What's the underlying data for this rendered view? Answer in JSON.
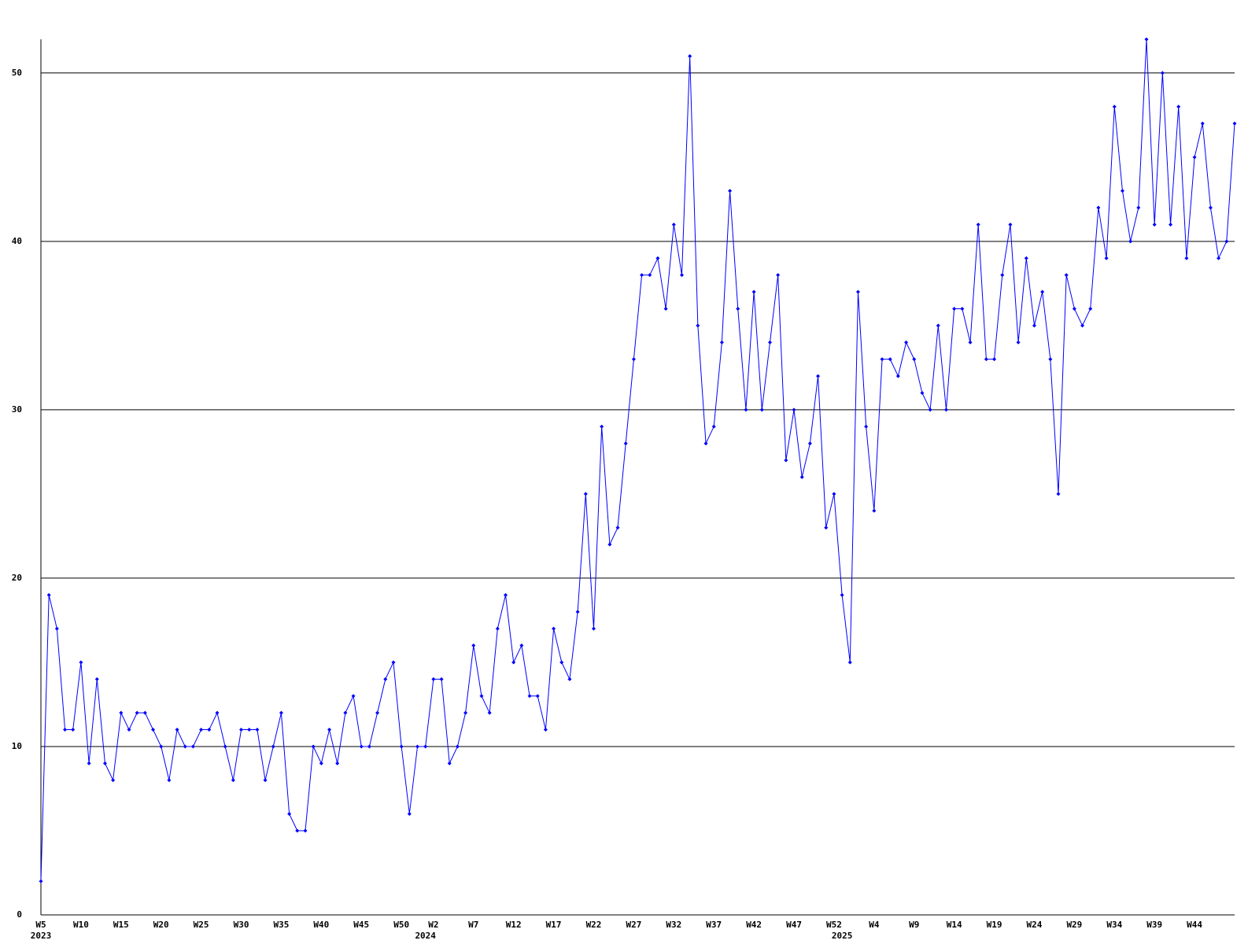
{
  "chart_data": {
    "type": "line",
    "x": [
      "W5",
      null,
      null,
      null,
      null,
      "W10",
      null,
      null,
      null,
      null,
      "W15",
      null,
      null,
      null,
      null,
      "W20",
      null,
      null,
      null,
      null,
      "W25",
      null,
      null,
      null,
      null,
      "W30",
      null,
      null,
      null,
      null,
      "W35",
      null,
      null,
      null,
      null,
      "W40",
      null,
      null,
      null,
      null,
      "W45",
      null,
      null,
      null,
      null,
      "W50",
      null,
      null,
      null,
      "W2",
      null,
      null,
      null,
      null,
      "W7",
      null,
      null,
      null,
      null,
      "W12",
      null,
      null,
      null,
      null,
      "W17",
      null,
      null,
      null,
      null,
      "W22",
      null,
      null,
      null,
      null,
      "W27",
      null,
      null,
      null,
      null,
      "W32",
      null,
      null,
      null,
      null,
      "W37",
      null,
      null,
      null,
      null,
      "W42",
      null,
      null,
      null,
      null,
      "W47",
      null,
      null,
      null,
      null,
      "W52",
      null,
      null,
      null,
      null,
      "W4",
      null,
      null,
      null,
      null,
      "W9",
      null,
      null,
      null,
      null,
      "W14",
      null,
      null,
      null,
      null,
      "W19",
      null,
      null,
      null,
      null,
      "W24",
      null,
      null,
      null,
      null,
      "W29",
      null,
      null,
      null,
      null,
      "W34",
      null,
      null,
      null,
      null,
      "W39",
      null,
      null,
      null,
      null,
      "W44",
      null,
      null,
      null,
      null,
      null
    ],
    "x_years": [
      "2023",
      null,
      null,
      null,
      null,
      null,
      null,
      null,
      null,
      null,
      null,
      null,
      null,
      null,
      null,
      null,
      null,
      null,
      null,
      null,
      null,
      null,
      null,
      null,
      null,
      null,
      null,
      null,
      null,
      null,
      null,
      null,
      null,
      null,
      null,
      null,
      null,
      null,
      null,
      null,
      null,
      null,
      null,
      null,
      null,
      null,
      null,
      null,
      "2024",
      null,
      null,
      null,
      null,
      null,
      null,
      null,
      null,
      null,
      null,
      null,
      null,
      null,
      null,
      null,
      null,
      null,
      null,
      null,
      null,
      null,
      null,
      null,
      null,
      null,
      null,
      null,
      null,
      null,
      null,
      null,
      null,
      null,
      null,
      null,
      null,
      null,
      null,
      null,
      null,
      null,
      null,
      null,
      null,
      null,
      null,
      null,
      null,
      null,
      null,
      null,
      "2025",
      null,
      null,
      null,
      null,
      null,
      null,
      null,
      null,
      null,
      null,
      null,
      null,
      null,
      null,
      null,
      null,
      null,
      null,
      null,
      null,
      null,
      null,
      null,
      null,
      null,
      null,
      null,
      null,
      null,
      null,
      null,
      null,
      null,
      null,
      null,
      null,
      null,
      null,
      null,
      null,
      null,
      null,
      null,
      null,
      null,
      null,
      null,
      null,
      null
    ],
    "series": [
      {
        "color": "#0000ff",
        "values": [
          2,
          19,
          17,
          11,
          11,
          15,
          9,
          14,
          9,
          8,
          12,
          11,
          12,
          12,
          11,
          10,
          8,
          11,
          10,
          10,
          11,
          11,
          12,
          10,
          8,
          11,
          11,
          11,
          8,
          10,
          12,
          6,
          5,
          5,
          10,
          9,
          11,
          9,
          12,
          13,
          10,
          10,
          12,
          14,
          15,
          10,
          6,
          10,
          10,
          14,
          14,
          9,
          10,
          12,
          16,
          13,
          12,
          17,
          19,
          15,
          16,
          13,
          13,
          11,
          17,
          15,
          14,
          18,
          25,
          17,
          29,
          22,
          23,
          28,
          33,
          38,
          38,
          39,
          36,
          41,
          38,
          51,
          35,
          28,
          29,
          34,
          43,
          36,
          30,
          37,
          30,
          34,
          38,
          27,
          30,
          26,
          28,
          32,
          23,
          25,
          19,
          15,
          37,
          29,
          24,
          33,
          33,
          32,
          34,
          33,
          31,
          30,
          35,
          30,
          36,
          36,
          34,
          41,
          33,
          33,
          38,
          41,
          34,
          39,
          35,
          37,
          33,
          25,
          38,
          36,
          35,
          36,
          42,
          39,
          48,
          43,
          40,
          42,
          52,
          41,
          50,
          41,
          48,
          39,
          45,
          47,
          42,
          39,
          40,
          47
        ]
      }
    ],
    "ylim": [
      0,
      52
    ],
    "yticks": [
      0,
      10,
      20,
      30,
      40,
      50
    ],
    "grid": true
  }
}
